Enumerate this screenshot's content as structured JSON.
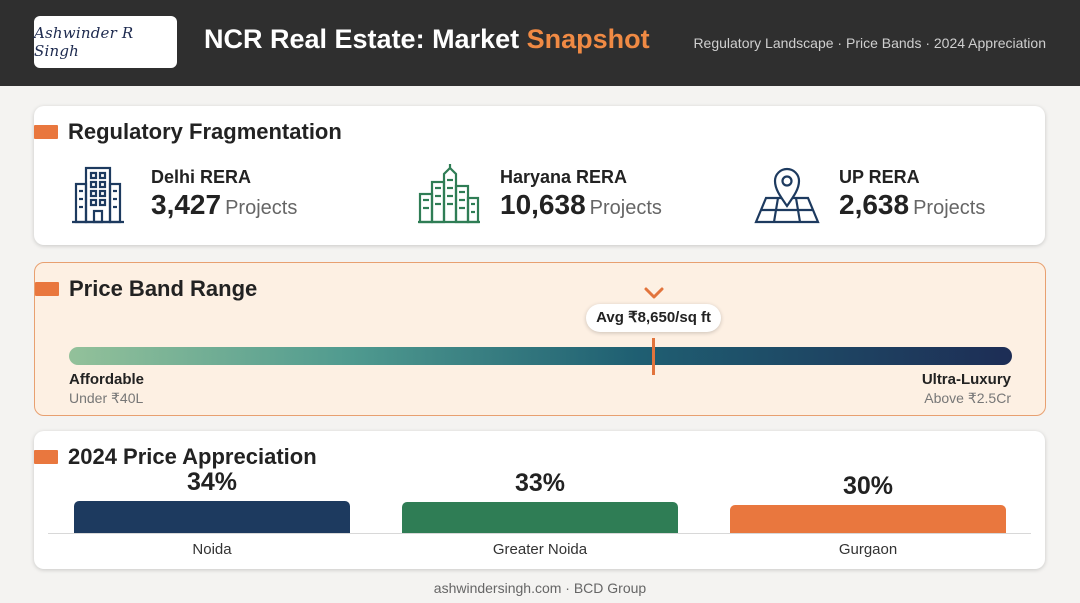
{
  "header": {
    "logo_text": "Ashwinder R Singh",
    "title_main": "NCR Real Estate: Market ",
    "title_accent": "Snapshot",
    "subtitle": "Regulatory Landscape · Price Bands · 2024 Appreciation"
  },
  "regulatory": {
    "heading": "Regulatory Fragmentation",
    "items": [
      {
        "name": "Delhi RERA",
        "count": "3,427",
        "unit": "Projects",
        "icon": "office-building-icon"
      },
      {
        "name": "Haryana RERA",
        "count": "10,638",
        "unit": "Projects",
        "icon": "city-skyline-icon"
      },
      {
        "name": "UP RERA",
        "count": "2,638",
        "unit": "Projects",
        "icon": "map-pin-icon"
      }
    ]
  },
  "price_band": {
    "heading": "Price Band Range",
    "avg_label": "Avg ₹8,650/sq ft",
    "avg_position_fraction": 0.62,
    "low_label": "Affordable",
    "low_sub": "Under ₹40L",
    "high_label": "Ultra-Luxury",
    "high_sub": "Above ₹2.5Cr"
  },
  "appreciation": {
    "heading": "2024 Price Appreciation",
    "bars": [
      {
        "name": "Noida",
        "label": "34%",
        "value": 34,
        "color": "#1d3a5f"
      },
      {
        "name": "Greater Noida",
        "label": "33%",
        "value": 33,
        "color": "#2f7d55"
      },
      {
        "name": "Gurgaon",
        "label": "30%",
        "value": 30,
        "color": "#e9773e"
      }
    ]
  },
  "footer": "ashwindersingh.com · BCD Group",
  "colors": {
    "accent": "#e9773e",
    "header_bg": "#2f2f2f",
    "icon": "#1d3a5f",
    "icon_green": "#2f7d55"
  }
}
